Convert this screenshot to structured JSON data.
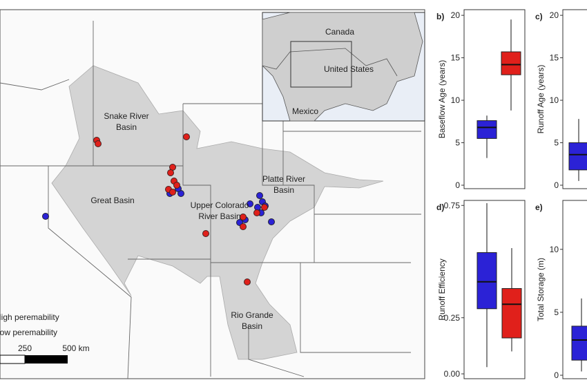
{
  "map": {
    "basin_labels": [
      {
        "lines": [
          "Snake River",
          "Basin"
        ]
      },
      {
        "lines": [
          "Great Basin"
        ]
      },
      {
        "lines": [
          "Upper Colorado",
          "River Basin"
        ]
      },
      {
        "lines": [
          "Platte River",
          "Basin"
        ]
      },
      {
        "lines": [
          "Rio Grande",
          "Basin"
        ]
      }
    ],
    "inset_labels": [
      "Canada",
      "United States",
      "Mexico"
    ],
    "legend": [
      {
        "label": "High peremability",
        "color": "#2b22d6"
      },
      {
        "label": "Low peremability",
        "color": "#e0201b"
      }
    ],
    "scale": [
      "250",
      "500 km"
    ]
  },
  "chart_data": [
    {
      "type": "box",
      "panel": "b)",
      "ylabel": "Baseflow Age (years)",
      "ylim": [
        0,
        20.5
      ],
      "yticks": [
        0,
        5,
        10,
        15,
        20
      ],
      "series": [
        {
          "color": "#2b22d6",
          "low": 3.2,
          "q1": 5.5,
          "median": 6.8,
          "q3": 7.6,
          "high": 8.2
        },
        {
          "color": "#e0201b",
          "low": 8.8,
          "q1": 13,
          "median": 14.2,
          "q3": 15.7,
          "high": 19.5
        }
      ]
    },
    {
      "type": "box",
      "panel": "c)",
      "ylabel": "Runoff Age (years)",
      "ylim": [
        0,
        20.5
      ],
      "yticks": [
        0,
        5,
        10,
        15,
        20
      ],
      "series": [
        {
          "color": "#2b22d6",
          "low": 0.5,
          "q1": 1.8,
          "median": 3.6,
          "q3": 5,
          "high": 7.8
        }
      ]
    },
    {
      "type": "box",
      "panel": "d)",
      "ylabel": "Runoff  Efficiency",
      "ylim": [
        0,
        0.78
      ],
      "yticks": [
        {
          "value": 0,
          "label": "0.00"
        },
        {
          "value": 0.25,
          "label": "0.25"
        },
        {
          "value": 0.75,
          "label": "0.75"
        }
      ],
      "series": [
        {
          "color": "#2b22d6",
          "low": 0.03,
          "q1": 0.29,
          "median": 0.41,
          "q3": 0.54,
          "high": 0.76
        },
        {
          "color": "#e0201b",
          "low": 0.1,
          "q1": 0.16,
          "median": 0.31,
          "q3": 0.38,
          "high": 0.56
        }
      ]
    },
    {
      "type": "box",
      "panel": "e)",
      "ylabel": "Total Storage (m)",
      "ylim": [
        0,
        13.5
      ],
      "yticks": [
        0,
        5,
        10
      ],
      "series": [
        {
          "color": "#2b22d6",
          "low": 0.3,
          "q1": 1.2,
          "median": 2.8,
          "q3": 3.9,
          "high": 6.1
        }
      ]
    }
  ]
}
